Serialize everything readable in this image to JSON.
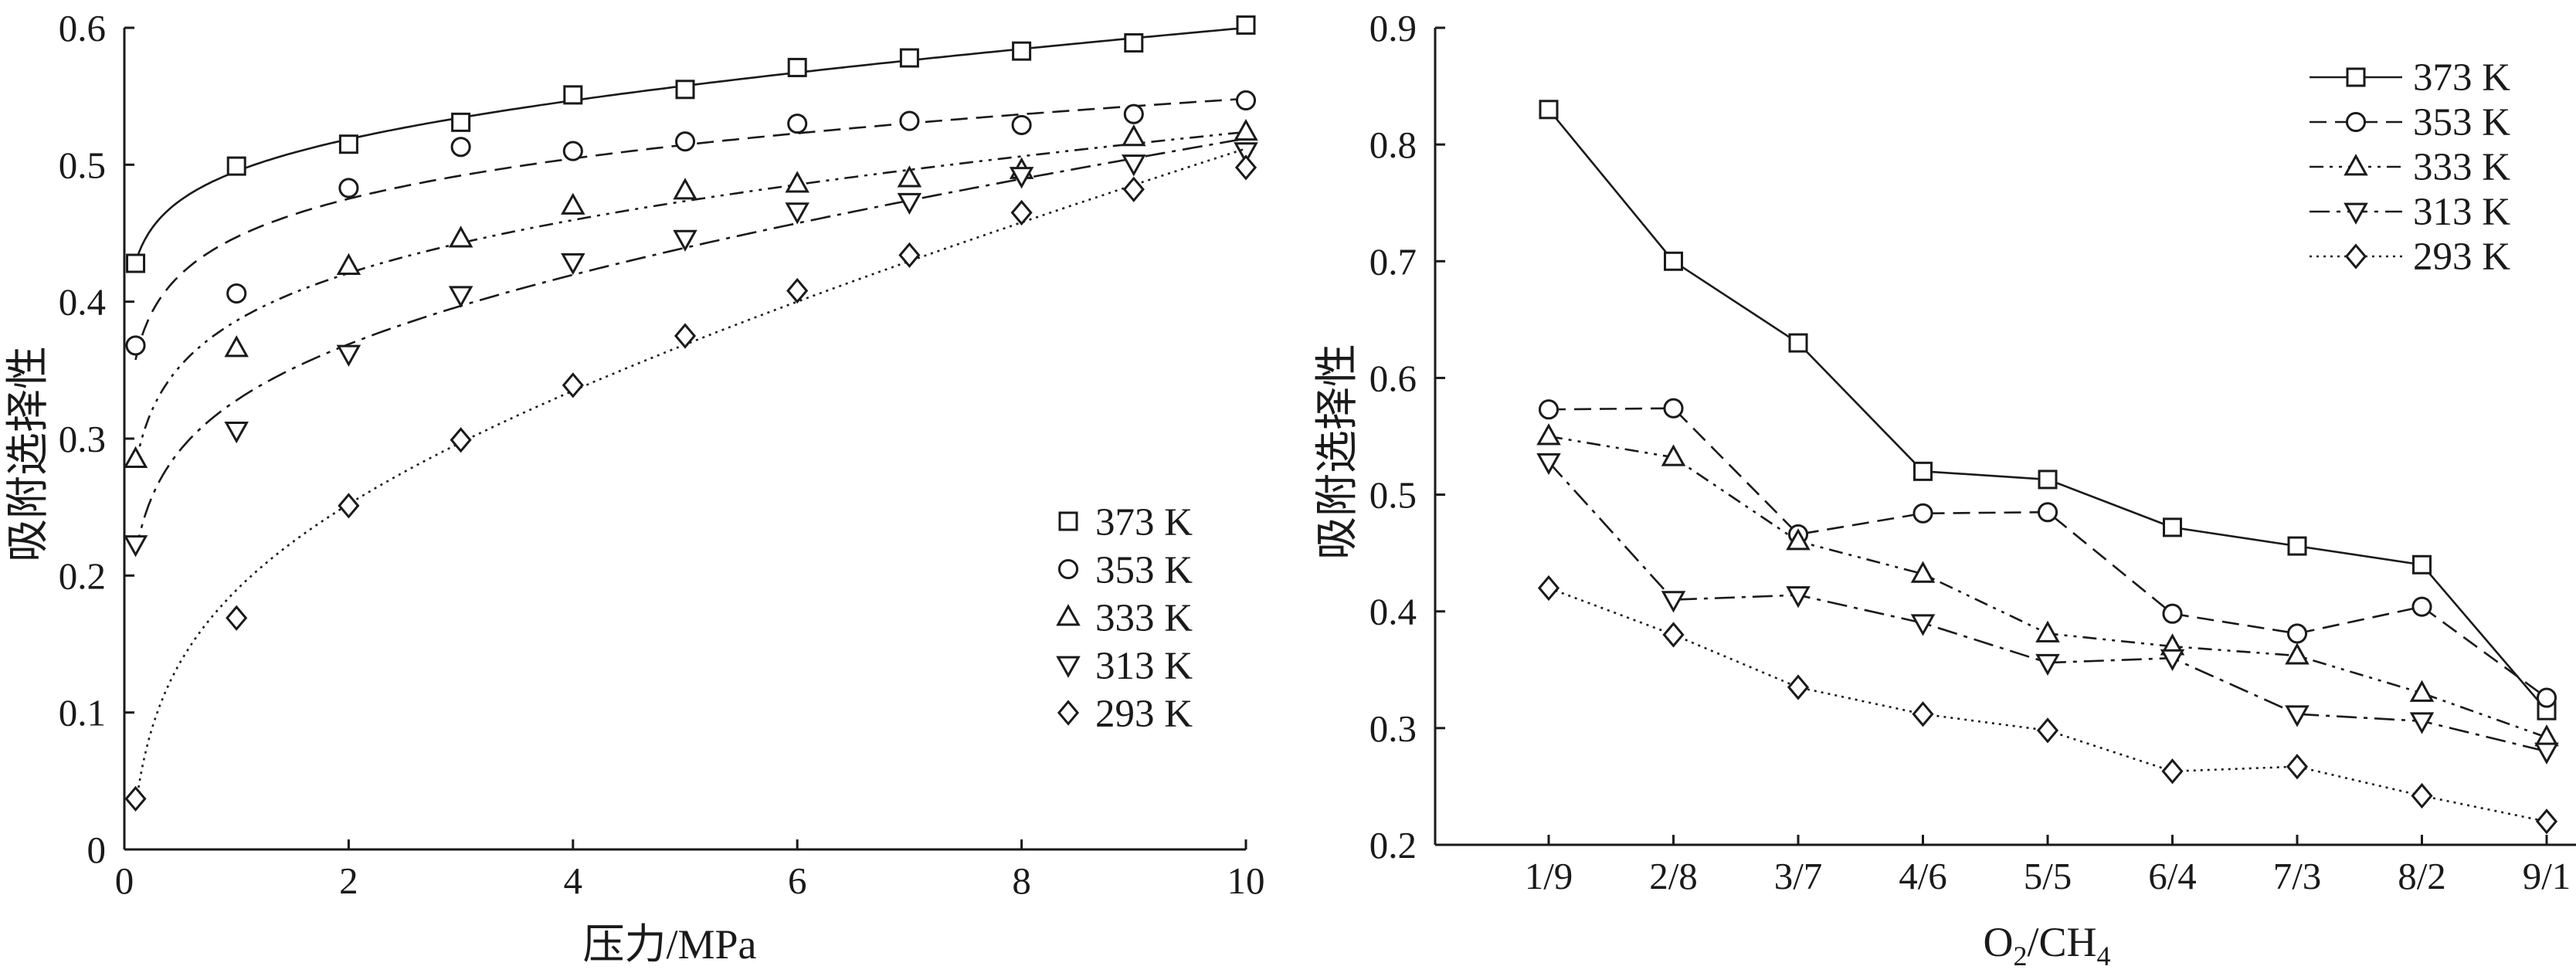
{
  "chart_data": [
    {
      "type": "scatter",
      "xlabel": "压力/MPa",
      "ylabel": "吸附选择性",
      "xlim": [
        0,
        10
      ],
      "ylim": [
        0,
        0.6
      ],
      "xticks": [
        "0",
        "2",
        "4",
        "6",
        "8",
        "10"
      ],
      "yticks": [
        "0",
        "0.1",
        "0.2",
        "0.3",
        "0.4",
        "0.5",
        "0.6"
      ],
      "legend_position": "bottom-right",
      "fitted_curves": true,
      "series": [
        {
          "name": "373 K",
          "marker": "square",
          "line": "solid",
          "x": [
            0.1,
            1,
            2,
            3,
            4,
            5,
            6,
            7,
            8,
            9,
            10
          ],
          "y": [
            0.428,
            0.499,
            0.515,
            0.531,
            0.551,
            0.555,
            0.571,
            0.578,
            0.583,
            0.589,
            0.602
          ]
        },
        {
          "name": "353 K",
          "marker": "circle",
          "line": "dashed",
          "x": [
            0.1,
            1,
            2,
            3,
            4,
            5,
            6,
            7,
            8,
            9,
            10
          ],
          "y": [
            0.368,
            0.406,
            0.483,
            0.513,
            0.51,
            0.517,
            0.53,
            0.532,
            0.529,
            0.537,
            0.547
          ]
        },
        {
          "name": "333 K",
          "marker": "triangle-up",
          "line": "dash-dot-dot",
          "x": [
            0.1,
            1,
            2,
            3,
            4,
            5,
            6,
            7,
            8,
            9,
            10
          ],
          "y": [
            0.285,
            0.366,
            0.426,
            0.446,
            0.47,
            0.481,
            0.486,
            0.49,
            0.496,
            0.52,
            0.524
          ]
        },
        {
          "name": "313 K",
          "marker": "triangle-down",
          "line": "dash-dot",
          "x": [
            0.1,
            1,
            2,
            3,
            4,
            5,
            6,
            7,
            8,
            9,
            10
          ],
          "y": [
            0.223,
            0.306,
            0.362,
            0.405,
            0.429,
            0.446,
            0.466,
            0.473,
            0.492,
            0.501,
            0.51
          ]
        },
        {
          "name": "293 K",
          "marker": "diamond",
          "line": "dotted",
          "x": [
            0.1,
            1,
            2,
            3,
            4,
            5,
            6,
            7,
            8,
            9,
            10
          ],
          "y": [
            0.037,
            0.169,
            0.251,
            0.299,
            0.339,
            0.375,
            0.408,
            0.434,
            0.465,
            0.482,
            0.498
          ]
        }
      ]
    },
    {
      "type": "line",
      "xlabel_main": "O",
      "xlabel_sub1": "2",
      "xlabel_mid": "/CH",
      "xlabel_sub2": "4",
      "ylabel": "吸附选择性",
      "categories": [
        "1/9",
        "2/8",
        "3/7",
        "4/6",
        "5/5",
        "6/4",
        "7/3",
        "8/2",
        "9/1"
      ],
      "ylim": [
        0.2,
        0.9
      ],
      "yticks": [
        "0.2",
        "0.3",
        "0.4",
        "0.5",
        "0.6",
        "0.7",
        "0.8",
        "0.9"
      ],
      "legend_position": "top-right",
      "series": [
        {
          "name": "373 K",
          "marker": "square",
          "line": "solid",
          "values": [
            0.83,
            0.7,
            0.63,
            0.52,
            0.513,
            0.472,
            0.456,
            0.44,
            0.315
          ]
        },
        {
          "name": "353 K",
          "marker": "circle",
          "line": "dashed",
          "values": [
            0.573,
            0.574,
            0.466,
            0.484,
            0.485,
            0.398,
            0.381,
            0.404,
            0.326
          ]
        },
        {
          "name": "333 K",
          "marker": "triangle-up",
          "line": "dash-dot-dot",
          "values": [
            0.55,
            0.532,
            0.46,
            0.432,
            0.381,
            0.37,
            0.362,
            0.33,
            0.292
          ]
        },
        {
          "name": "313 K",
          "marker": "triangle-down",
          "line": "dash-dot",
          "values": [
            0.528,
            0.41,
            0.414,
            0.39,
            0.356,
            0.36,
            0.312,
            0.306,
            0.28
          ]
        },
        {
          "name": "293 K",
          "marker": "diamond",
          "line": "dotted",
          "values": [
            0.42,
            0.38,
            0.335,
            0.312,
            0.298,
            0.263,
            0.267,
            0.242,
            0.22
          ]
        }
      ]
    }
  ]
}
